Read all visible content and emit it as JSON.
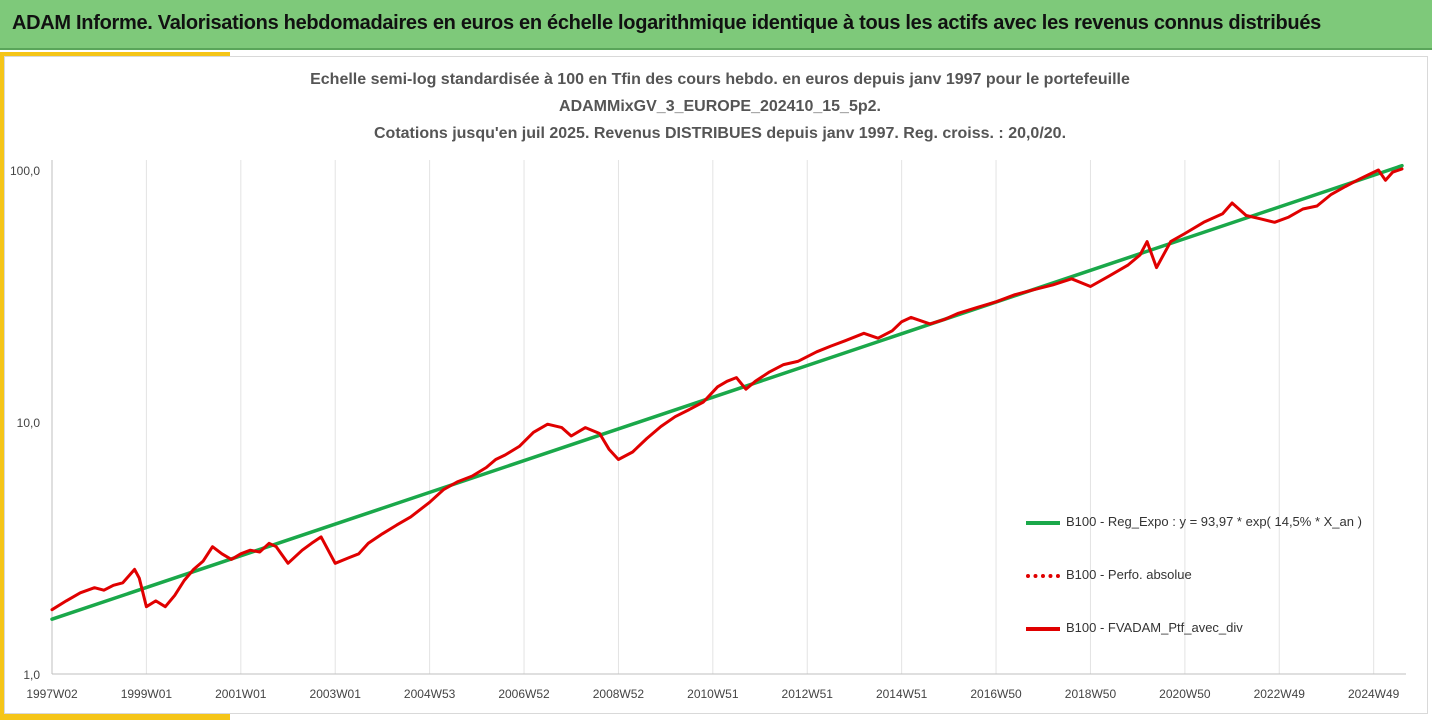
{
  "header": {
    "title": "ADAM Informe. Valorisations hebdomadaires en euros en échelle logarithmique identique à tous les actifs avec les revenus connus distribués"
  },
  "chart_data": {
    "type": "line",
    "title_lines": [
      "Echelle semi-log standardisée à 100 en Tfin des cours hebdo.  en euros depuis janv 1997 pour le portefeuille",
      "ADAMMixGV_3_EUROPE_202410_15_5p2.",
      "Cotations  jusqu'en juil 2025. Revenus DISTRIBUES depuis janv 1997. Reg. croiss. : 20,0/20."
    ],
    "y_scale": "log",
    "ylim": [
      1,
      100
    ],
    "y_ticks": [
      "1,0",
      "10,0",
      "100,0"
    ],
    "x_tick_labels": [
      "1997W02",
      "1999W01",
      "2001W01",
      "2003W01",
      "2004W53",
      "2006W52",
      "2008W52",
      "2010W51",
      "2012W51",
      "2014W51",
      "2016W50",
      "2018W50",
      "2020W50",
      "2022W49",
      "2024W49"
    ],
    "x_tick_years": [
      1997.0,
      1999.0,
      2001.0,
      2003.0,
      2005.0,
      2007.0,
      2009.0,
      2011.0,
      2013.0,
      2015.0,
      2017.0,
      2019.0,
      2021.0,
      2023.0,
      2025.0
    ],
    "xlim": [
      1997.0,
      2025.6
    ],
    "grid": "vertical",
    "legend_position": "right",
    "series": [
      {
        "name": "B100 - Reg_Expo : y = 93,97 * exp( 14,5% *  X_an )",
        "color": "#1aa84a",
        "style": "solid",
        "x": [
          1997.0,
          2025.6
        ],
        "y": [
          1.65,
          104.0
        ]
      },
      {
        "name": "B100 - Perfo. absolue",
        "color": "#e00000",
        "style": "dotted",
        "x": [],
        "y": []
      },
      {
        "name": "B100 - FVADAM_Ptf_avec_div",
        "color": "#e00000",
        "style": "solid",
        "x": [
          1997.0,
          1997.3,
          1997.6,
          1997.9,
          1998.1,
          1998.3,
          1998.5,
          1998.75,
          1998.85,
          1999.0,
          1999.2,
          1999.4,
          1999.6,
          1999.8,
          2000.0,
          2000.2,
          2000.4,
          2000.6,
          2000.8,
          2001.0,
          2001.2,
          2001.4,
          2001.6,
          2001.75,
          2002.0,
          2002.3,
          2002.5,
          2002.7,
          2003.0,
          2003.3,
          2003.5,
          2003.7,
          2004.0,
          2004.3,
          2004.6,
          2005.0,
          2005.3,
          2005.6,
          2005.9,
          2006.2,
          2006.4,
          2006.6,
          2006.9,
          2007.2,
          2007.5,
          2007.8,
          2008.0,
          2008.3,
          2008.6,
          2008.8,
          2009.0,
          2009.3,
          2009.6,
          2009.9,
          2010.2,
          2010.5,
          2010.8,
          2011.1,
          2011.3,
          2011.5,
          2011.7,
          2011.9,
          2012.2,
          2012.5,
          2012.8,
          2013.2,
          2013.5,
          2013.8,
          2014.2,
          2014.5,
          2014.8,
          2015.0,
          2015.2,
          2015.6,
          2015.9,
          2016.2,
          2016.6,
          2017.0,
          2017.4,
          2017.8,
          2018.2,
          2018.6,
          2019.0,
          2019.4,
          2019.8,
          2020.05,
          2020.2,
          2020.4,
          2020.7,
          2021.0,
          2021.4,
          2021.8,
          2022.0,
          2022.3,
          2022.6,
          2022.9,
          2023.2,
          2023.5,
          2023.8,
          2024.1,
          2024.4,
          2024.7,
          2024.9,
          2025.1,
          2025.25,
          2025.4,
          2025.6
        ],
        "y": [
          1.8,
          1.95,
          2.1,
          2.2,
          2.15,
          2.25,
          2.3,
          2.6,
          2.4,
          1.85,
          1.95,
          1.85,
          2.05,
          2.35,
          2.6,
          2.8,
          3.2,
          3.0,
          2.85,
          3.0,
          3.1,
          3.05,
          3.3,
          3.2,
          2.75,
          3.1,
          3.3,
          3.5,
          2.75,
          2.9,
          3.0,
          3.3,
          3.6,
          3.9,
          4.2,
          4.8,
          5.4,
          5.8,
          6.1,
          6.6,
          7.1,
          7.4,
          8.0,
          9.1,
          9.8,
          9.5,
          8.8,
          9.5,
          9.0,
          7.8,
          7.1,
          7.6,
          8.6,
          9.6,
          10.5,
          11.2,
          12.0,
          13.8,
          14.5,
          15.0,
          13.5,
          14.5,
          15.8,
          16.9,
          17.4,
          19.0,
          20.0,
          21.0,
          22.5,
          21.5,
          23.0,
          25.0,
          26.0,
          24.5,
          25.5,
          27.0,
          28.5,
          30.0,
          32.0,
          33.5,
          35.0,
          37.0,
          34.5,
          38.0,
          42.0,
          46.0,
          52.0,
          41.0,
          52.0,
          56.0,
          62.0,
          67.0,
          74.0,
          66.0,
          64.0,
          62.0,
          65.0,
          70.0,
          72.0,
          80.0,
          86.0,
          92.0,
          96.0,
          100.0,
          91.0,
          98.0,
          101.0
        ]
      }
    ]
  }
}
